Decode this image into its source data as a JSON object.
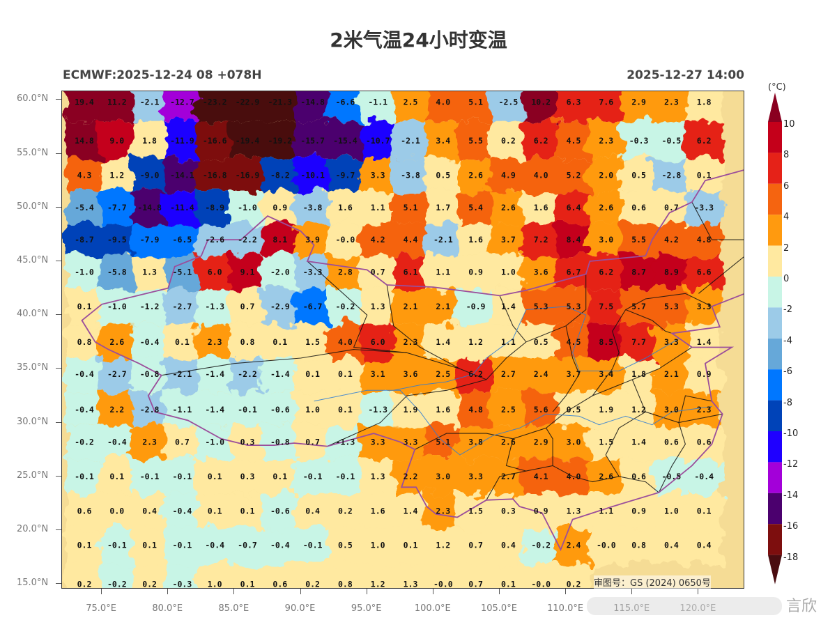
{
  "title": "2米气温24小时变温",
  "subtitle_left": "ECMWF:2025-12-24 08 +078H",
  "subtitle_right": "2025-12-27 14:00",
  "approval_text": "审图号：GS (2024) 0650号",
  "watermark_text": "言欣",
  "map": {
    "lon_range": [
      72,
      123.5
    ],
    "lat_range": [
      14.5,
      60.8
    ],
    "lat_labels": [
      "15.0°N",
      "20.0°N",
      "25.0°N",
      "30.0°N",
      "35.0°N",
      "40.0°N",
      "45.0°N",
      "50.0°N",
      "55.0°N",
      "60.0°N"
    ],
    "lat_values": [
      15,
      20,
      25,
      30,
      35,
      40,
      45,
      50,
      55,
      60
    ],
    "lon_labels": [
      "75.0°E",
      "80.0°E",
      "85.0°E",
      "90.0°E",
      "95.0°E",
      "100.0°E",
      "105.0°E",
      "110.0°E",
      "115.0°E",
      "120.0°E"
    ],
    "lon_values": [
      75,
      80,
      85,
      90,
      95,
      100,
      105,
      110,
      115,
      120
    ]
  },
  "chart_data": {
    "type": "heatmap",
    "title": "2米气温24小时变温",
    "unit": "(°C)",
    "row_lats": [
      60,
      57,
      54,
      51,
      48,
      45,
      42,
      39,
      36,
      33,
      30,
      27,
      24,
      21,
      18,
      15
    ],
    "col_lons": [
      74,
      76.7,
      79.4,
      82.1,
      84.8,
      87.5,
      90.2,
      92.9,
      95.6,
      98.3,
      101,
      103.7,
      106.4,
      109.1,
      111.8,
      114.5,
      117.2,
      119.9,
      122.6
    ],
    "values": [
      [
        "19.4",
        "11.2",
        "-2.1",
        "-12.7",
        "-23.2",
        "-22.9",
        "-21.3",
        "-14.8",
        "-6.6",
        "-1.1",
        "2.5",
        "4.0",
        "5.1",
        "-2.5",
        "10.2",
        "6.3",
        "7.6",
        "2.9",
        "2.3",
        "1.8"
      ],
      [
        "14.8",
        "9.0",
        "1.8",
        "-11.9",
        "-16.6",
        "-19.4",
        "-19.2",
        "-15.7",
        "-15.4",
        "-10.7",
        "-2.1",
        "3.4",
        "5.5",
        "0.2",
        "6.2",
        "4.5",
        "2.3",
        "-0.3",
        "-0.5",
        "6.2"
      ],
      [
        "4.3",
        "1.2",
        "-9.0",
        "-14.1",
        "-16.8",
        "-16.9",
        "-8.2",
        "-10.1",
        "-9.7",
        "3.3",
        "-3.8",
        "0.5",
        "2.6",
        "4.9",
        "4.0",
        "5.2",
        "2.0",
        "0.5",
        "-2.8",
        "0.1"
      ],
      [
        "-5.4",
        "-7.7",
        "-14.8",
        "-11.4",
        "-8.9",
        "-1.0",
        "0.9",
        "-3.8",
        "1.6",
        "1.1",
        "5.1",
        "1.7",
        "5.4",
        "2.6",
        "1.6",
        "6.4",
        "2.6",
        "0.6",
        "0.7",
        "-3.3"
      ],
      [
        "-8.7",
        "-9.5",
        "-7.9",
        "-6.5",
        "-2.6",
        "-2.2",
        "8.1",
        "3.9",
        "-0.0",
        "4.2",
        "4.4",
        "-2.1",
        "1.6",
        "3.7",
        "7.2",
        "8.4",
        "3.0",
        "5.5",
        "4.2",
        "4.8"
      ],
      [
        "-1.0",
        "-5.8",
        "1.3",
        "-5.1",
        "6.0",
        "9.1",
        "-2.0",
        "-3.3",
        "2.8",
        "0.7",
        "6.1",
        "1.1",
        "0.9",
        "1.0",
        "3.6",
        "6.7",
        "6.2",
        "8.7",
        "8.9",
        "6.6"
      ],
      [
        "0.1",
        "-1.0",
        "-1.2",
        "-2.7",
        "-1.3",
        "0.7",
        "-2.9",
        "-6.7",
        "-0.2",
        "1.3",
        "2.1",
        "2.1",
        "-0.9",
        "1.4",
        "5.3",
        "5.3",
        "7.5",
        "5.7",
        "5.3",
        "3.3"
      ],
      [
        "0.8",
        "2.6",
        "-0.4",
        "0.1",
        "2.3",
        "0.8",
        "0.1",
        "1.5",
        "4.0",
        "6.0",
        "2.3",
        "1.4",
        "1.2",
        "1.1",
        "0.5",
        "4.5",
        "8.5",
        "7.7",
        "3.3",
        "1.4"
      ],
      [
        "-0.4",
        "-2.7",
        "-0.8",
        "-2.1",
        "-1.4",
        "-2.2",
        "-1.4",
        "0.1",
        "0.1",
        "3.1",
        "3.6",
        "2.5",
        "6.2",
        "2.7",
        "2.4",
        "3.7",
        "3.4",
        "1.8",
        "2.1",
        "0.9"
      ],
      [
        "-0.4",
        "2.2",
        "-2.8",
        "-1.1",
        "-1.4",
        "-0.1",
        "-0.6",
        "1.0",
        "0.1",
        "-1.3",
        "1.9",
        "1.6",
        "4.8",
        "2.5",
        "5.6",
        "0.5",
        "1.9",
        "1.2",
        "3.0",
        "2.3"
      ],
      [
        "-0.2",
        "-0.4",
        "2.3",
        "0.7",
        "-1.0",
        "0.3",
        "-0.8",
        "0.7",
        "-1.3",
        "3.3",
        "3.3",
        "5.1",
        "3.8",
        "2.6",
        "2.9",
        "3.0",
        "1.5",
        "1.4",
        "0.6",
        "0.6"
      ],
      [
        "-0.1",
        "0.1",
        "-0.1",
        "-0.1",
        "0.1",
        "0.3",
        "0.1",
        "-0.1",
        "-0.1",
        "1.3",
        "2.2",
        "3.0",
        "3.3",
        "2.7",
        "4.1",
        "4.0",
        "2.6",
        "0.6",
        "-0.5",
        "-0.4"
      ],
      [
        "0.6",
        "0.0",
        "0.4",
        "-0.4",
        "0.1",
        "0.1",
        "-0.6",
        "0.4",
        "0.2",
        "1.6",
        "1.4",
        "2.3",
        "1.5",
        "0.3",
        "0.9",
        "1.3",
        "1.1",
        "0.9",
        "1.0",
        "0.1"
      ],
      [
        "0.1",
        "-0.1",
        "0.1",
        "-0.1",
        "-0.4",
        "-0.7",
        "-0.4",
        "-0.1",
        "0.5",
        "1.0",
        "0.1",
        "1.2",
        "0.7",
        "0.4",
        "-0.2",
        "2.4",
        "-0.0",
        "0.8",
        "0.4",
        "0.4"
      ],
      [
        "0.2",
        "-0.2",
        "0.2",
        "-0.3",
        "1.0",
        "0.1",
        "0.6",
        "0.2",
        "0.8",
        "1.2",
        "1.3",
        "-0.0",
        "0.7",
        "0.1",
        "-0.0",
        "0.2",
        "",
        "",
        "",
        ""
      ]
    ],
    "value_rows_lats": [
      59.8,
      56.2,
      53.0,
      50.0,
      47.0,
      44.0,
      40.8,
      37.5,
      34.5,
      31.2,
      28.2,
      25.0,
      21.8,
      18.6,
      15.0
    ],
    "colorbar": {
      "levels": [
        -18,
        -16,
        -14,
        -12,
        -10,
        -8,
        -6,
        -4,
        -2,
        0,
        2,
        4,
        6,
        8,
        10
      ],
      "tick_labels": [
        "10",
        "8",
        "6",
        "4",
        "2",
        "0",
        "-2",
        "-4",
        "-6",
        "-8",
        "-10",
        "-12",
        "-14",
        "-16",
        "-18"
      ],
      "colors": [
        "#4a0c10",
        "#7d0e0e",
        "#4b006e",
        "#a300d9",
        "#1f00ff",
        "#0043b8",
        "#0077ff",
        "#66a8d9",
        "#9ccbe8",
        "#c8f5e6",
        "#ffe9a0",
        "#ff9a0f",
        "#f56410",
        "#e52218",
        "#c4001a",
        "#8a0020"
      ]
    }
  }
}
